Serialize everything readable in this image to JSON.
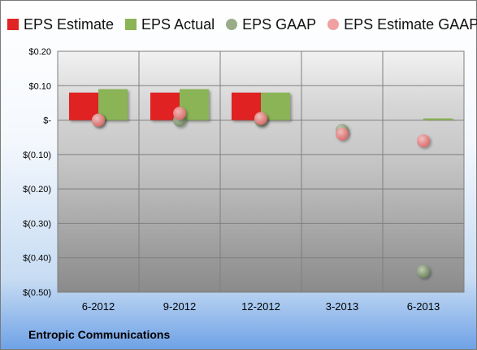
{
  "company": "Entropic Communications",
  "colors": {
    "estimate": "#e02424",
    "actual": "#8ab455",
    "gaap": "#758a62",
    "estimate_gaap": "#ec8e8e"
  },
  "legend": [
    {
      "label": "EPS Estimate",
      "shape": "square",
      "color": "#e02424"
    },
    {
      "label": "EPS Actual",
      "shape": "square",
      "color": "#8ab455"
    },
    {
      "label": "EPS GAAP",
      "shape": "circle",
      "color": "#9aab88"
    },
    {
      "label": "EPS Estimate GAAP",
      "shape": "circle",
      "color": "#f0a0a0"
    }
  ],
  "chart_data": {
    "type": "bar",
    "categories": [
      "6-2012",
      "9-2012",
      "12-2012",
      "3-2013",
      "6-2013"
    ],
    "series": [
      {
        "name": "EPS Estimate",
        "kind": "bar",
        "values": [
          0.08,
          0.08,
          0.08,
          null,
          null
        ]
      },
      {
        "name": "EPS Actual",
        "kind": "bar",
        "values": [
          0.09,
          0.09,
          0.08,
          null,
          0.005
        ]
      },
      {
        "name": "EPS GAAP",
        "kind": "scatter",
        "values": [
          0.0,
          0.0,
          0.0,
          -0.03,
          -0.44
        ]
      },
      {
        "name": "EPS Estimate GAAP",
        "kind": "scatter",
        "values": [
          0.0,
          0.02,
          0.005,
          -0.04,
          -0.06
        ]
      }
    ],
    "ylim": [
      -0.5,
      0.2
    ],
    "yticks": [
      0.2,
      0.1,
      0,
      -0.1,
      -0.2,
      -0.3,
      -0.4,
      -0.5
    ],
    "ytick_labels": [
      "$0.20",
      "$0.10",
      "$-",
      "$(0.10)",
      "$(0.20)",
      "$(0.30)",
      "$(0.40)",
      "$(0.50)"
    ],
    "grid": true,
    "legend_position": "top"
  }
}
